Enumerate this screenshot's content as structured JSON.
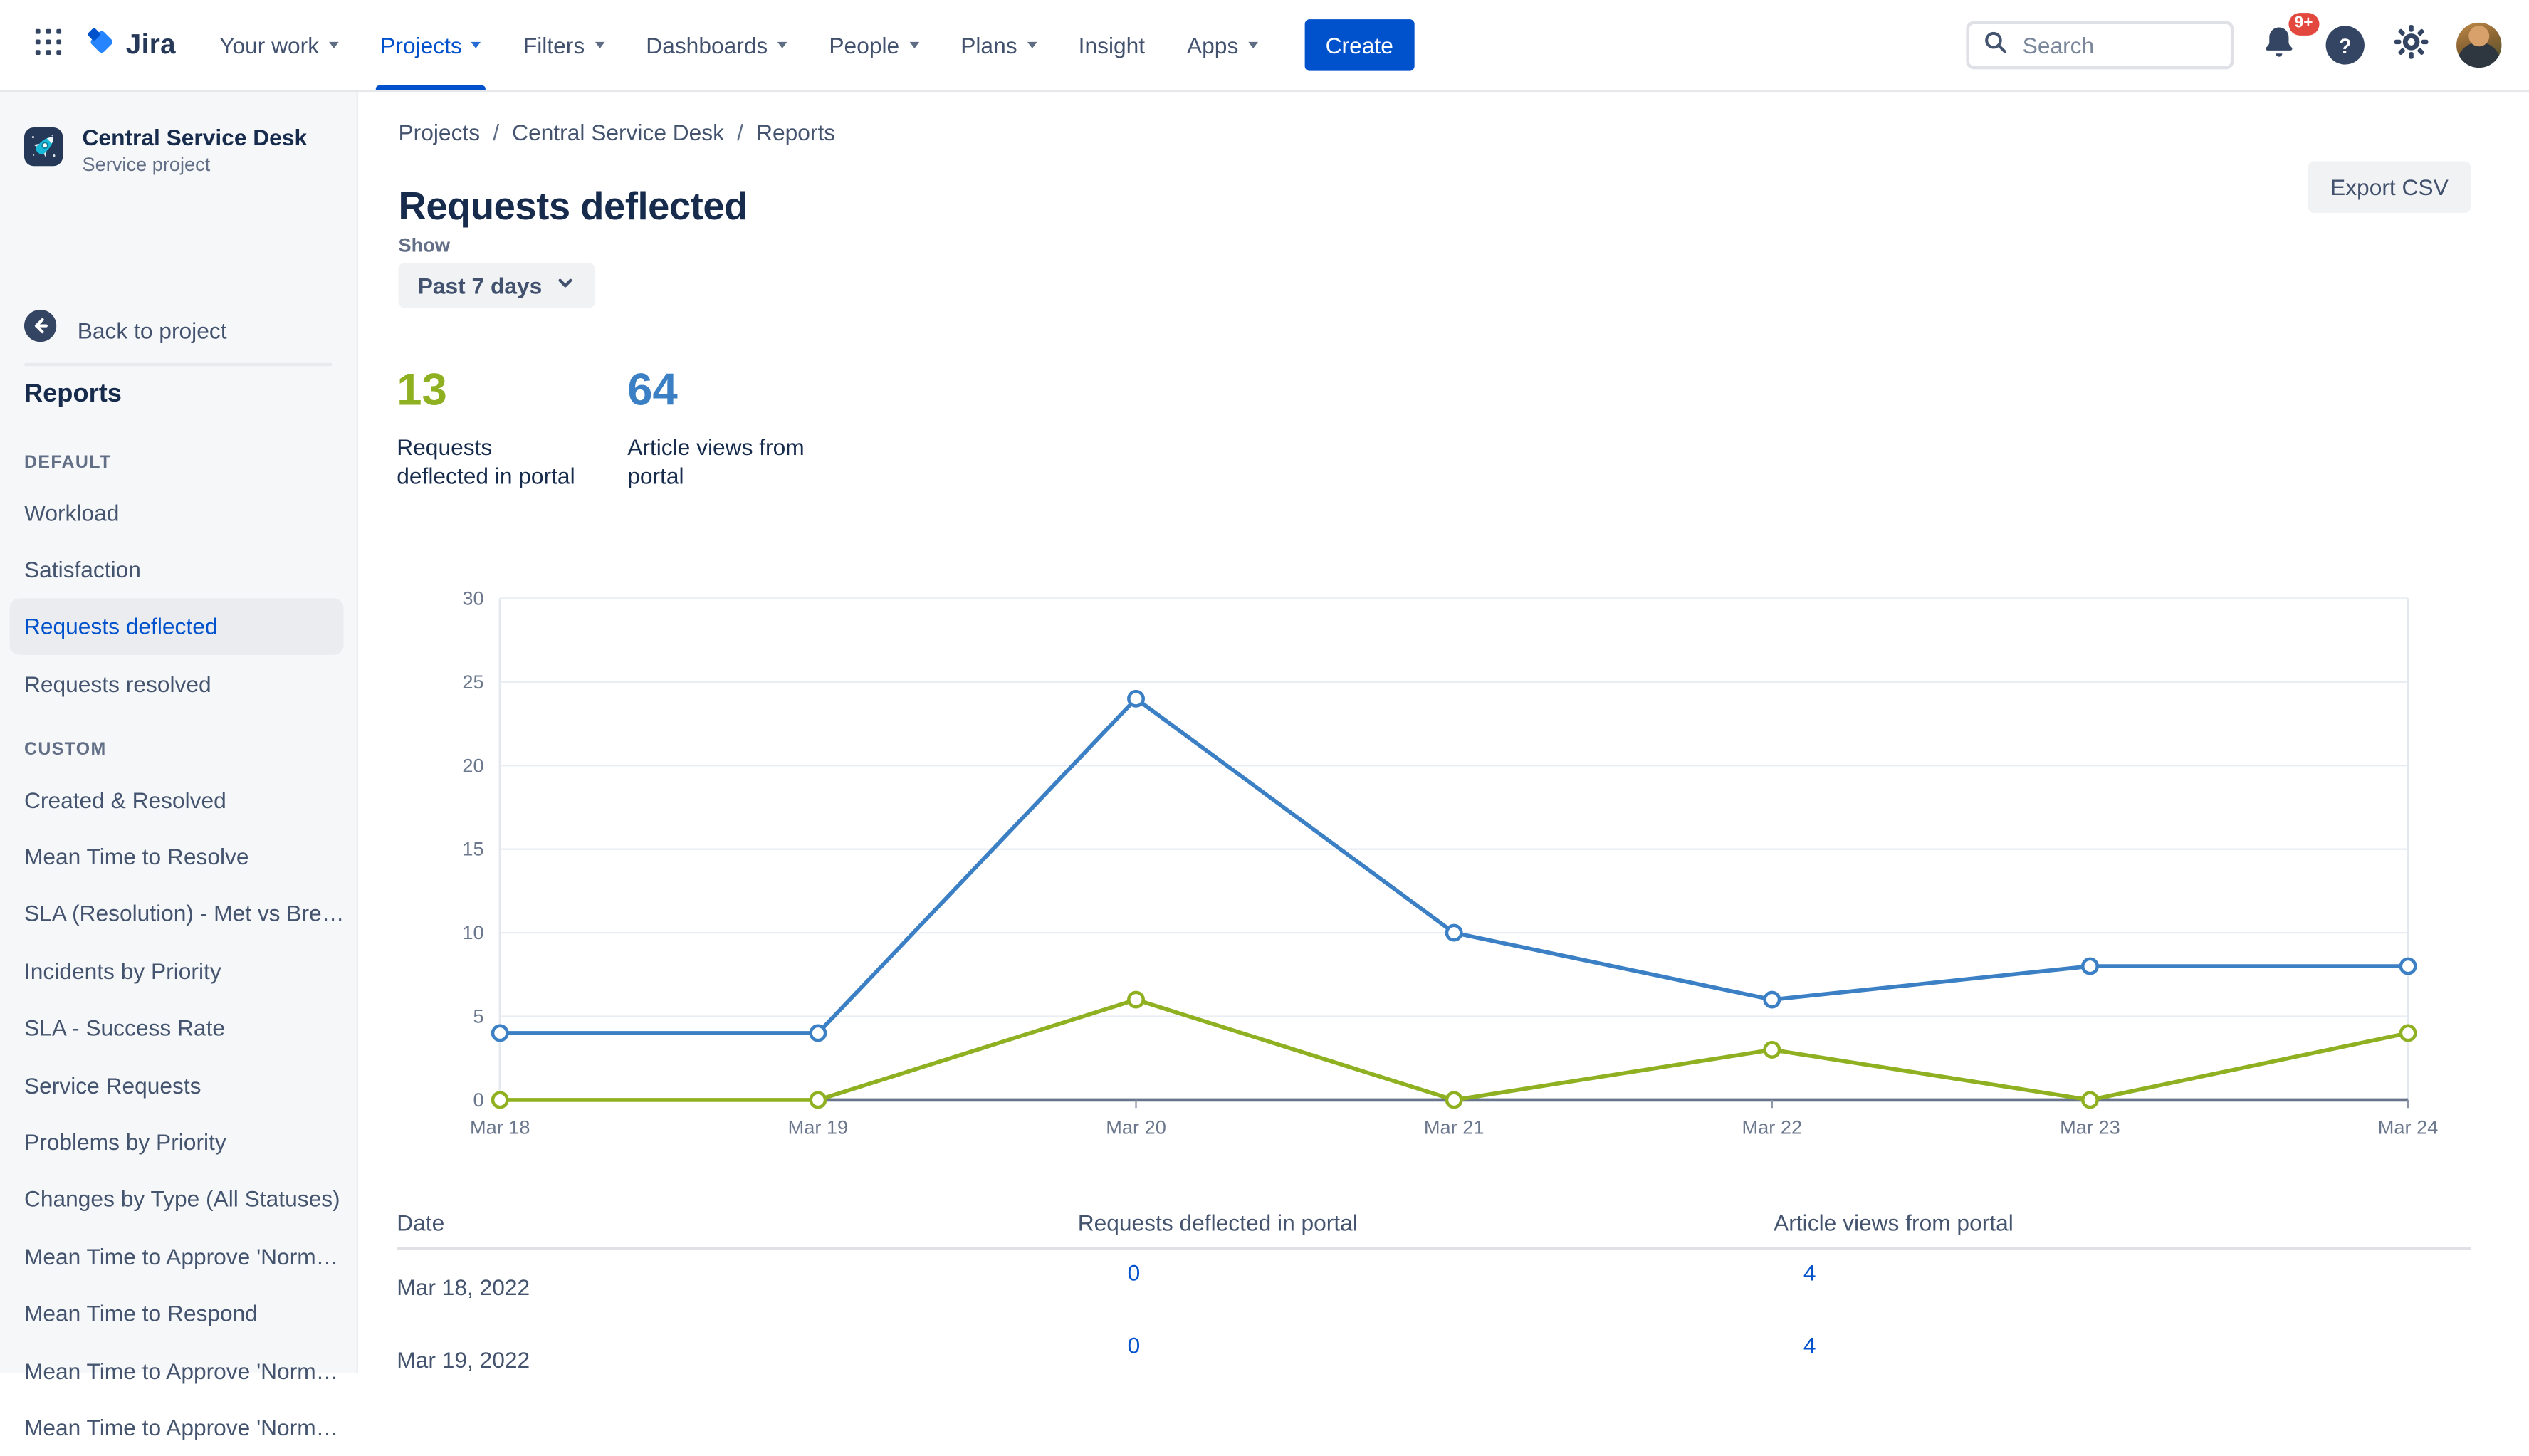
{
  "nav": {
    "logo_text": "Jira",
    "items": [
      {
        "label": "Your work",
        "chevron": true,
        "active": false
      },
      {
        "label": "Projects",
        "chevron": true,
        "active": true
      },
      {
        "label": "Filters",
        "chevron": true,
        "active": false
      },
      {
        "label": "Dashboards",
        "chevron": true,
        "active": false
      },
      {
        "label": "People",
        "chevron": true,
        "active": false
      },
      {
        "label": "Plans",
        "chevron": true,
        "active": false
      },
      {
        "label": "Insight",
        "chevron": false,
        "active": false
      },
      {
        "label": "Apps",
        "chevron": true,
        "active": false
      }
    ],
    "create_label": "Create",
    "search_placeholder": "Search",
    "notifications_badge": "9+"
  },
  "sidebar": {
    "project_name": "Central Service Desk",
    "project_type": "Service project",
    "back_label": "Back to project",
    "heading": "Reports",
    "sections": [
      {
        "label": "DEFAULT",
        "items": [
          "Workload",
          "Satisfaction",
          "Requests deflected",
          "Requests resolved"
        ]
      },
      {
        "label": "CUSTOM",
        "items": [
          "Created & Resolved",
          "Mean Time to Resolve",
          "SLA (Resolution) - Met vs Bre…",
          "Incidents by Priority",
          "SLA - Success Rate",
          "Service Requests",
          "Problems by Priority",
          "Changes by Type (All Statuses)",
          "Mean Time to Approve 'Norm…",
          "Mean Time to Respond",
          "Mean Time to Approve 'Norm…",
          "Mean Time to Approve 'Norm…"
        ]
      }
    ],
    "selected_item": "Requests deflected"
  },
  "main": {
    "breadcrumb": [
      "Projects",
      "Central Service Desk",
      "Reports"
    ],
    "title": "Requests deflected",
    "export_label": "Export CSV",
    "show_label": "Show",
    "period_value": "Past 7 days",
    "stats": [
      {
        "value": "13",
        "label": "Requests deflected in portal",
        "color": "#8eb021"
      },
      {
        "value": "64",
        "label": "Article views from portal",
        "color": "#3b7fc4"
      }
    ]
  },
  "chart_data": {
    "type": "line",
    "x": [
      "Mar 18",
      "Mar 19",
      "Mar 20",
      "Mar 21",
      "Mar 22",
      "Mar 23",
      "Mar 24"
    ],
    "series": [
      {
        "name": "Requests deflected in portal",
        "color": "#8eb021",
        "values": [
          0,
          0,
          6,
          0,
          3,
          0,
          4
        ]
      },
      {
        "name": "Article views from portal",
        "color": "#3b7fc4",
        "values": [
          4,
          4,
          24,
          10,
          6,
          8,
          8
        ]
      }
    ],
    "ylim": [
      0,
      30
    ],
    "yticks": [
      0,
      5,
      10,
      15,
      20,
      25,
      30
    ],
    "grid": true,
    "legend": "none"
  },
  "table": {
    "columns": [
      "Date",
      "Requests deflected in portal",
      "Article views from portal"
    ],
    "rows": [
      {
        "date": "Mar 18, 2022",
        "values": [
          "0",
          "4"
        ]
      },
      {
        "date": "Mar 19, 2022",
        "values": [
          "0",
          "4"
        ]
      }
    ]
  },
  "icons": {
    "app_switcher": "grid-3x3",
    "logo_mark": "jira-diamond",
    "nav_chevron": "chevron-down",
    "search": "magnifier",
    "notifications": "bell",
    "help_glyph": "?",
    "settings": "gear",
    "avatar": "user-photo",
    "project_avatar": "rocket",
    "back": "arrow-left-circle",
    "period_chevron": "chevron-down"
  },
  "colors": {
    "accent": "#0052CC",
    "chart_green": "#8eb021",
    "chart_blue": "#3b7fc4",
    "badge_red": "#E2483D",
    "selected_item_bg": "#EBECF0",
    "sidebar_bg": "#F6F7F9"
  }
}
